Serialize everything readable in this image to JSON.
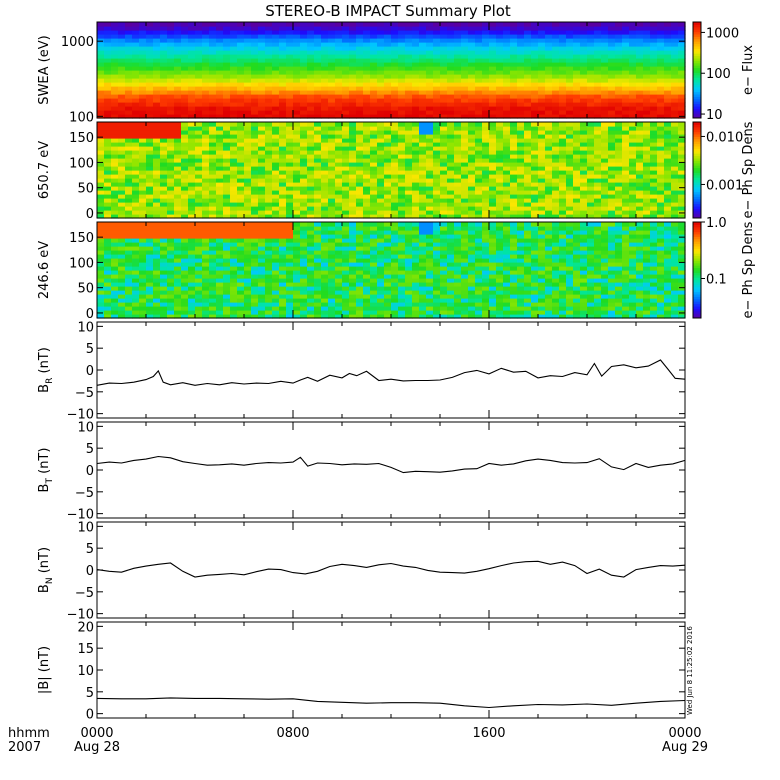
{
  "title": "STEREO-B IMPACT Summary Plot",
  "stamp": "Wed Jun  8 11:25:02 2016",
  "time_axis": {
    "corner_top": "hhmm",
    "corner_bottom": "2007",
    "ticks": [
      {
        "hour": 0,
        "label": "0000",
        "sub": "Aug 28"
      },
      {
        "hour": 8,
        "label": "0800",
        "sub": ""
      },
      {
        "hour": 16,
        "label": "1600",
        "sub": ""
      },
      {
        "hour": 24,
        "label": "0000",
        "sub": "Aug 29"
      }
    ],
    "minor_hours": [
      2,
      4,
      6,
      10,
      12,
      14,
      18,
      20,
      22
    ],
    "range": [
      0,
      24
    ]
  },
  "colors": {
    "colormap": [
      "#5a00a0",
      "#1d0cff",
      "#0070ff",
      "#00c8ff",
      "#00e6a0",
      "#20dc20",
      "#90e600",
      "#ffe600",
      "#ffa000",
      "#ff3c00",
      "#e00000"
    ],
    "line": "#000000",
    "axis": "#000000"
  },
  "chart_data": [
    {
      "id": "swea",
      "type": "heatmap",
      "ylabel": "SWEA (eV)",
      "yscale": "log",
      "ylim": [
        95,
        1800
      ],
      "yticks": [
        {
          "v": 100,
          "label": "100"
        },
        {
          "v": 1000,
          "label": "1000"
        }
      ],
      "colorbar": {
        "label": "e− Flux",
        "scale": "log",
        "range": [
          8,
          1800
        ],
        "ticks": [
          {
            "v": 10,
            "label": "10"
          },
          {
            "v": 100,
            "label": "100"
          },
          {
            "v": 1000,
            "label": "1000"
          }
        ]
      },
      "profile": [
        {
          "y": 95,
          "z": 1800
        },
        {
          "y": 130,
          "z": 1500
        },
        {
          "y": 180,
          "z": 1000
        },
        {
          "y": 250,
          "z": 450
        },
        {
          "y": 350,
          "z": 200
        },
        {
          "y": 500,
          "z": 110
        },
        {
          "y": 700,
          "z": 60
        },
        {
          "y": 1000,
          "z": 30
        },
        {
          "y": 1300,
          "z": 15
        },
        {
          "y": 1600,
          "z": 9
        },
        {
          "y": 1800,
          "z": 8
        }
      ]
    },
    {
      "id": "pad650",
      "type": "heatmap",
      "ylabel": "650.7 eV",
      "ylim": [
        -10,
        180
      ],
      "yticks": [
        {
          "v": 0,
          "label": "0"
        },
        {
          "v": 50,
          "label": "50"
        },
        {
          "v": 100,
          "label": "100"
        },
        {
          "v": 150,
          "label": "150"
        }
      ],
      "colorbar": {
        "label": "e− Ph Sp Dens",
        "scale": "log",
        "range": [
          0.0002,
          0.02
        ],
        "ticks": [
          {
            "v": 0.001,
            "label": "0.001"
          },
          {
            "v": 0.01,
            "label": "0.010"
          }
        ]
      },
      "features": [
        {
          "hour_start": 0,
          "hour_end": 3.5,
          "pa_start": 150,
          "pa_end": 180,
          "z": 0.016
        },
        {
          "hour_start": 13.2,
          "hour_end": 13.6,
          "pa_start": 160,
          "pa_end": 180,
          "z": 0.0006
        }
      ],
      "base_level": 0.003
    },
    {
      "id": "pad246",
      "type": "heatmap",
      "ylabel": "246.6 eV",
      "ylim": [
        -10,
        180
      ],
      "yticks": [
        {
          "v": 0,
          "label": "0"
        },
        {
          "v": 50,
          "label": "50"
        },
        {
          "v": 100,
          "label": "100"
        },
        {
          "v": 150,
          "label": "150"
        }
      ],
      "colorbar": {
        "label": "e− Ph Sp Dens",
        "scale": "log",
        "range": [
          0.02,
          1.0
        ],
        "ticks": [
          {
            "v": 0.1,
            "label": "0.1"
          },
          {
            "v": 1.0,
            "label": "1.0"
          }
        ]
      },
      "features": [
        {
          "hour_start": 0,
          "hour_end": 8,
          "pa_start": 150,
          "pa_end": 180,
          "z": 0.6
        },
        {
          "hour_start": 13.2,
          "hour_end": 13.6,
          "pa_start": 160,
          "pa_end": 180,
          "z": 0.05
        }
      ],
      "base_level": 0.12
    },
    {
      "id": "br",
      "type": "line",
      "ylabel": "B",
      "ylabel_sub": "R",
      "ylabel_unit": " (nT)",
      "ylim": [
        -11,
        11
      ],
      "yticks": [
        {
          "v": -10,
          "label": "−10"
        },
        {
          "v": -5,
          "label": "−5"
        },
        {
          "v": 0,
          "label": "0"
        },
        {
          "v": 5,
          "label": "5"
        },
        {
          "v": 10,
          "label": "10"
        }
      ],
      "x": [
        0,
        0.5,
        1,
        1.5,
        2,
        2.3,
        2.5,
        2.7,
        3,
        3.5,
        4,
        4.5,
        5,
        5.5,
        6,
        6.5,
        7,
        7.5,
        8,
        8.3,
        8.6,
        9,
        9.5,
        10,
        10.3,
        10.6,
        11,
        11.5,
        12,
        12.5,
        13,
        13.5,
        14,
        14.5,
        15,
        15.5,
        16,
        16.5,
        17,
        17.5,
        18,
        18.5,
        19,
        19.5,
        20,
        20.3,
        20.6,
        21,
        21.5,
        22,
        22.5,
        23,
        23.3,
        23.6,
        24
      ],
      "values": [
        -3.5,
        -3,
        -3.1,
        -2.8,
        -2.2,
        -1.5,
        -0.2,
        -2.8,
        -3.4,
        -2.9,
        -3.5,
        -3.1,
        -3.4,
        -2.9,
        -3.2,
        -3,
        -3.1,
        -2.6,
        -3,
        -2.3,
        -1.7,
        -2.6,
        -1.2,
        -1.8,
        -0.8,
        -1.3,
        -0.3,
        -2.4,
        -2.1,
        -2.5,
        -2.4,
        -2.4,
        -2.3,
        -1.7,
        -0.6,
        -0.1,
        -0.9,
        0.4,
        -0.5,
        -0.3,
        -1.8,
        -1.3,
        -1.5,
        -0.6,
        -1.1,
        1.5,
        -1.4,
        0.8,
        1.2,
        0.5,
        0.9,
        2.3,
        0.2,
        -1.9,
        -2.1
      ]
    },
    {
      "id": "bt",
      "type": "line",
      "ylabel": "B",
      "ylabel_sub": "T",
      "ylabel_unit": " (nT)",
      "ylim": [
        -11,
        11
      ],
      "yticks": [
        {
          "v": -10,
          "label": "−10"
        },
        {
          "v": -5,
          "label": "−5"
        },
        {
          "v": 0,
          "label": "0"
        },
        {
          "v": 5,
          "label": "5"
        },
        {
          "v": 10,
          "label": "10"
        }
      ],
      "x": [
        0,
        0.5,
        1,
        1.5,
        2,
        2.5,
        3,
        3.5,
        4,
        4.5,
        5,
        5.5,
        6,
        6.5,
        7,
        7.5,
        8,
        8.3,
        8.6,
        9,
        9.5,
        10,
        10.5,
        11,
        11.5,
        12,
        12.5,
        13,
        13.5,
        14,
        14.5,
        15,
        15.5,
        16,
        16.5,
        17,
        17.5,
        18,
        18.5,
        19,
        19.5,
        20,
        20.5,
        21,
        21.5,
        22,
        22.5,
        23,
        23.5,
        24
      ],
      "values": [
        1.5,
        1.8,
        1.6,
        2.2,
        2.5,
        3.1,
        2.8,
        1.9,
        1.5,
        1.1,
        1.2,
        1.4,
        1.1,
        1.5,
        1.7,
        1.6,
        1.8,
        2.9,
        0.9,
        1.6,
        1.5,
        1.2,
        1.4,
        1.3,
        1.5,
        0.6,
        -0.6,
        -0.3,
        -0.4,
        -0.5,
        -0.2,
        0.2,
        0.3,
        1.5,
        1.1,
        1.4,
        2.1,
        2.5,
        2.2,
        1.7,
        1.6,
        1.7,
        2.6,
        0.7,
        0.1,
        1.5,
        0.6,
        1.1,
        1.4,
        2.2
      ]
    },
    {
      "id": "bn",
      "type": "line",
      "ylabel": "B",
      "ylabel_sub": "N",
      "ylabel_unit": " (nT)",
      "ylim": [
        -11,
        11
      ],
      "yticks": [
        {
          "v": -10,
          "label": "−10"
        },
        {
          "v": -5,
          "label": "−5"
        },
        {
          "v": 0,
          "label": "0"
        },
        {
          "v": 5,
          "label": "5"
        },
        {
          "v": 10,
          "label": "10"
        }
      ],
      "x": [
        0,
        0.5,
        1,
        1.5,
        2,
        2.5,
        3,
        3.5,
        4,
        4.5,
        5,
        5.5,
        6,
        6.5,
        7,
        7.5,
        8,
        8.5,
        9,
        9.5,
        10,
        10.5,
        11,
        11.5,
        12,
        12.5,
        13,
        13.5,
        14,
        14.5,
        15,
        15.5,
        16,
        16.5,
        17,
        17.5,
        18,
        18.5,
        19,
        19.5,
        20,
        20.5,
        21,
        21.5,
        22,
        22.5,
        23,
        23.5,
        24
      ],
      "values": [
        0.1,
        -0.3,
        -0.5,
        0.4,
        0.9,
        1.3,
        1.6,
        -0.3,
        -1.6,
        -1.2,
        -1.0,
        -0.8,
        -1.1,
        -0.4,
        0.2,
        0.1,
        -0.6,
        -0.9,
        -0.3,
        0.8,
        1.3,
        1.0,
        0.6,
        1.2,
        1.5,
        0.9,
        0.6,
        -0.1,
        -0.5,
        -0.6,
        -0.7,
        -0.3,
        0.3,
        1.0,
        1.6,
        1.9,
        2.0,
        1.3,
        1.8,
        1.0,
        -0.8,
        0.2,
        -1.2,
        -1.6,
        0.1,
        0.6,
        1.0,
        0.9,
        1.1
      ]
    },
    {
      "id": "bmag",
      "type": "line",
      "ylabel": "|B| (nT)",
      "ylim": [
        -1,
        21
      ],
      "yticks": [
        {
          "v": 0,
          "label": "0"
        },
        {
          "v": 5,
          "label": "5"
        },
        {
          "v": 10,
          "label": "10"
        },
        {
          "v": 15,
          "label": "15"
        },
        {
          "v": 20,
          "label": "20"
        }
      ],
      "x": [
        0,
        1,
        2,
        3,
        4,
        5,
        6,
        7,
        8,
        9,
        10,
        11,
        12,
        13,
        14,
        15,
        16,
        17,
        18,
        19,
        20,
        21,
        22,
        23,
        24
      ],
      "values": [
        3.5,
        3.4,
        3.4,
        3.6,
        3.5,
        3.5,
        3.4,
        3.3,
        3.4,
        2.8,
        2.6,
        2.4,
        2.5,
        2.5,
        2.4,
        1.8,
        1.4,
        1.8,
        2.1,
        2.0,
        2.2,
        1.9,
        2.4,
        2.8,
        3.0
      ]
    }
  ]
}
